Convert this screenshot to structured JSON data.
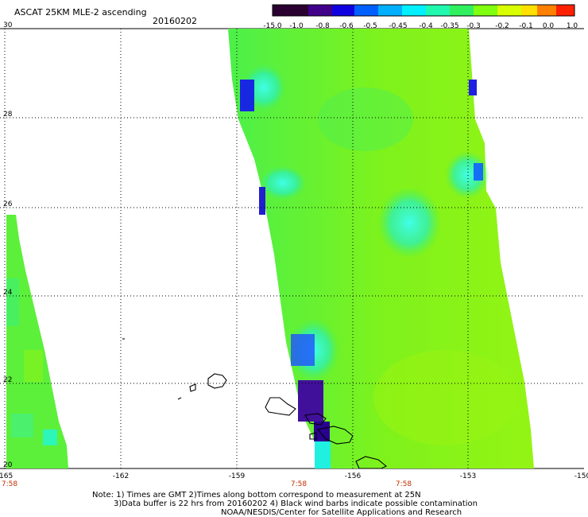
{
  "title": "ASCAT 25KM MLE-2 ascending",
  "date": "20160202",
  "colorbar": {
    "labels": [
      "-15.0",
      "-1.0",
      "-0.8",
      "-0.6",
      "-0.5",
      "-0.45",
      "-0.4",
      "-0.35",
      "-0.3",
      "-0.2",
      "-0.1",
      "0.0",
      "1.0"
    ],
    "colors": [
      "#2a0030",
      "#3a0080",
      "#2000c8",
      "#0040ff",
      "#0090ff",
      "#00e0ff",
      "#20ffd0",
      "#30ff60",
      "#60ff20",
      "#b0ff00",
      "#ffe000",
      "#ff8000",
      "#ff2000"
    ]
  },
  "map": {
    "lon_range": [
      -165,
      -150
    ],
    "lat_range": [
      20,
      30
    ],
    "lon_ticks": [
      "-165",
      "-162",
      "-159",
      "-156",
      "-153",
      "-150"
    ],
    "lat_ticks": [
      "20",
      "22",
      "24",
      "26",
      "28",
      "30"
    ],
    "time_labels": [
      "7:58",
      "7:58",
      "7:58"
    ],
    "time_label_color": "#c03000"
  },
  "notes": {
    "line1": "Note: 1) Times are GMT 2)Times along bottom correspond to measurement at 25N",
    "line2": "3)Data buffer is 22 hrs from 20160202 4) Black wind barbs indicate possible contamination",
    "line3": "NOAA/NESDIS/Center for Satellite Applications and Research"
  }
}
